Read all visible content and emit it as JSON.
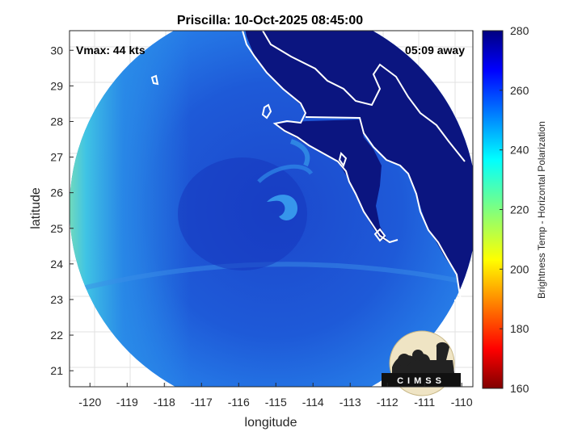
{
  "figure": {
    "title": "Priscilla: 10-Oct-2025 08:45:00",
    "vmax_label": "Vmax: 44 kts",
    "time_away": "05:09 away",
    "xlabel": "longitude",
    "ylabel": "latitude",
    "logo_text": "CIMSS"
  },
  "axes": {
    "x_ticks": [
      "-120",
      "-119",
      "-118",
      "-117",
      "-116",
      "-115",
      "-114",
      "-113",
      "-112",
      "-111",
      "-110"
    ],
    "y_ticks": [
      "30",
      "29",
      "28",
      "27",
      "26",
      "25",
      "24",
      "23",
      "22",
      "21"
    ],
    "xlim": [
      -120.55,
      -109.7
    ],
    "ylim": [
      20.55,
      30.55
    ]
  },
  "colorbar": {
    "label": "Brightness Temp - Horizontal Polarization",
    "ticks": [
      "280",
      "260",
      "240",
      "220",
      "200",
      "180",
      "160"
    ],
    "range": [
      160,
      280
    ],
    "colormap": "jet"
  },
  "colors": {
    "scene_blue": "#1e5adc",
    "dark_core": "#1a3ec8",
    "land": "#0a1478",
    "coast": "#ffffff"
  }
}
